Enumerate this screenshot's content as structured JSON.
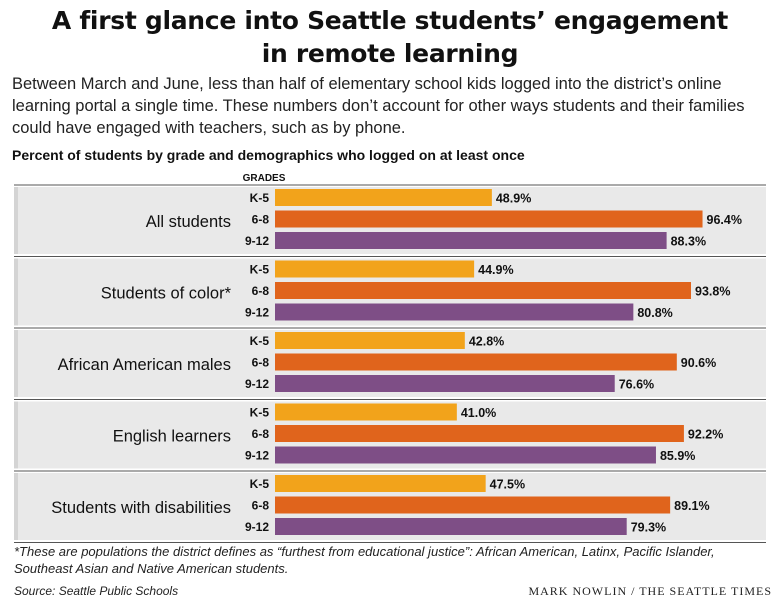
{
  "header": {
    "title_line1": "A first glance into Seattle students’ engagement",
    "title_line2": "in remote learning",
    "dek": "Between March and June, less than half of elementary school kids logged into the district’s online learning portal a single time. These numbers don’t account for other ways students and their families could have engaged with teachers, such as by phone.",
    "subhead": "Percent of students by grade and demographics who logged on at least once"
  },
  "footer": {
    "footnote": "*These are populations the district defines as “furthest from educational justice”: African American, Latinx, Pacific Islander, Southeast Asian and Native American students.",
    "source": "Source: Seattle Public Schools",
    "credit": "MARK NOWLIN / THE SEATTLE TIMES"
  },
  "chart_data": {
    "type": "bar",
    "orientation": "horizontal",
    "grades_header": "GRADES",
    "grades": [
      "K-5",
      "6-8",
      "9-12"
    ],
    "series_colors": [
      "#f2a31b",
      "#e0641c",
      "#7e4e86"
    ],
    "value_suffix": "%",
    "xlim": [
      0,
      100
    ],
    "groups": [
      {
        "label": "All students",
        "values": [
          48.9,
          96.4,
          88.3
        ]
      },
      {
        "label": "Students of color*",
        "values": [
          44.9,
          93.8,
          80.8
        ]
      },
      {
        "label": "African American males",
        "values": [
          42.8,
          90.6,
          76.6
        ]
      },
      {
        "label": "English learners",
        "values": [
          41.0,
          92.2,
          85.9
        ]
      },
      {
        "label": "Students with disabilities",
        "values": [
          47.5,
          89.1,
          79.3
        ]
      }
    ]
  }
}
